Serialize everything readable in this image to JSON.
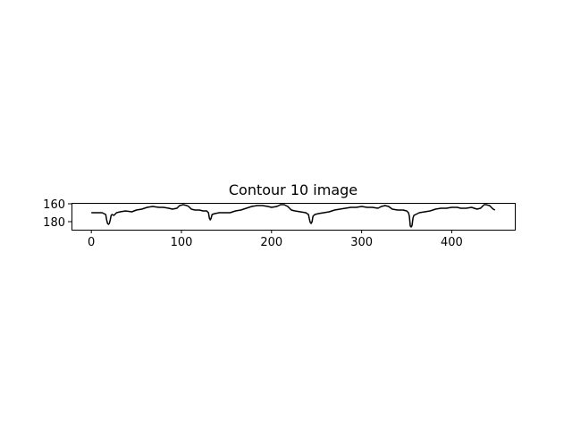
{
  "chart_data": {
    "type": "line",
    "title": "Contour 10 image",
    "xlabel": "",
    "ylabel": "",
    "xlim": [
      -22,
      470
    ],
    "ylim": [
      189,
      159
    ],
    "y_inverted": true,
    "grid": false,
    "legend": "none",
    "x_ticks": [
      0,
      100,
      200,
      300,
      400
    ],
    "y_ticks": [
      160,
      180
    ],
    "line_color": "#000000",
    "series": [
      {
        "x": [
          0,
          8,
          12,
          16,
          17,
          18,
          19,
          20,
          21,
          22,
          23,
          25,
          28,
          32,
          38,
          45,
          50,
          56,
          62,
          68,
          75,
          80,
          86,
          90,
          95,
          98,
          102,
          106,
          108,
          111,
          115,
          120,
          124,
          128,
          130,
          131,
          132,
          133,
          134,
          137,
          142,
          148,
          154,
          160,
          166,
          172,
          178,
          184,
          190,
          196,
          200,
          206,
          210,
          214,
          218,
          222,
          226,
          232,
          238,
          241,
          242,
          243,
          244,
          245,
          246,
          248,
          252,
          258,
          264,
          270,
          276,
          282,
          288,
          294,
          300,
          306,
          312,
          318,
          322,
          326,
          330,
          334,
          340,
          346,
          350,
          352,
          353,
          354,
          355,
          356,
          357,
          358,
          360,
          364,
          370,
          376,
          382,
          388,
          394,
          400,
          406,
          410,
          416,
          422,
          428,
          432,
          434,
          436,
          438,
          442,
          446,
          448
        ],
        "y": [
          170,
          170,
          170,
          172,
          178,
          182,
          183,
          182,
          178,
          173,
          172,
          173,
          170,
          169,
          168,
          169,
          167,
          166,
          164,
          163,
          164,
          164,
          165,
          166,
          165,
          162,
          161,
          162,
          163,
          166,
          167,
          167,
          168,
          168,
          170,
          176,
          178,
          176,
          172,
          171,
          170,
          170,
          170,
          168,
          167,
          165,
          163,
          162,
          162,
          163,
          164,
          163,
          161,
          161,
          163,
          167,
          168,
          169,
          170,
          172,
          177,
          181,
          182,
          180,
          174,
          172,
          171,
          170,
          169,
          167,
          166,
          165,
          164,
          164,
          163,
          164,
          164,
          165,
          163,
          162,
          163,
          166,
          167,
          167,
          168,
          170,
          174,
          185,
          186,
          184,
          176,
          173,
          172,
          170,
          169,
          168,
          166,
          165,
          165,
          164,
          164,
          165,
          165,
          164,
          166,
          165,
          163,
          161,
          161,
          162,
          166,
          167
        ]
      }
    ]
  }
}
